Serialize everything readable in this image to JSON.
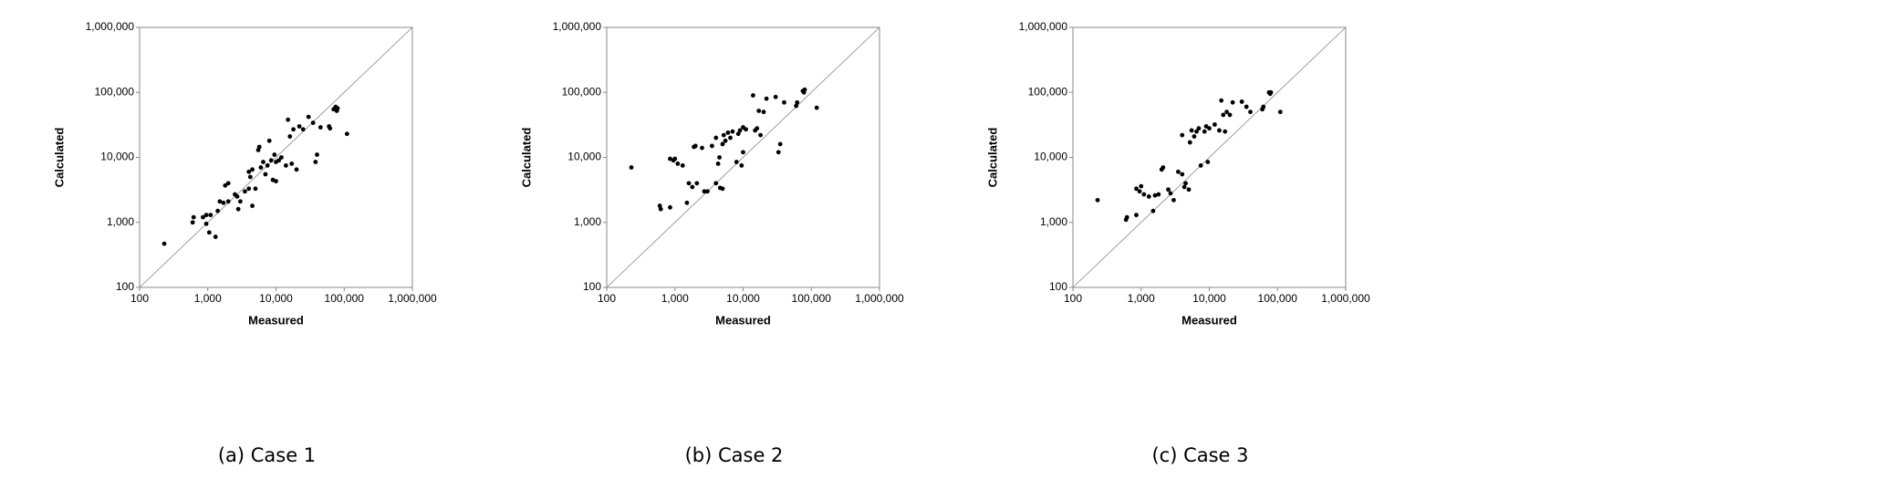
{
  "chart_data": [
    {
      "type": "scatter",
      "caption": "(a) Case 1",
      "xlabel": "Measured",
      "ylabel": "Calculated",
      "color": "#000000",
      "log_x": true,
      "log_y": true,
      "xlim": [
        100,
        1000000
      ],
      "ylim": [
        100,
        1000000
      ],
      "xticks": [
        100,
        {
          "value": 1000,
          "label": "1,000"
        },
        {
          "value": 10000,
          "label": "10,000"
        },
        {
          "value": 100000,
          "label": "100,000"
        },
        {
          "value": 1000000,
          "label": "1,000,000"
        }
      ],
      "yticks": [
        100,
        {
          "value": 1000,
          "label": "1,000"
        },
        {
          "value": 10000,
          "label": "10,000"
        },
        {
          "value": 100000,
          "label": "100,000"
        },
        {
          "value": 1000000,
          "label": "1,000,000"
        }
      ],
      "x": [
        230,
        600,
        620,
        850,
        950,
        950,
        1050,
        1100,
        1300,
        1400,
        1500,
        1700,
        1800,
        2000,
        2000,
        2500,
        2700,
        2800,
        3000,
        3500,
        4000,
        4000,
        4200,
        4500,
        4500,
        5000,
        5500,
        5700,
        6000,
        6500,
        7000,
        7500,
        8000,
        8500,
        9000,
        9500,
        10000,
        10000,
        11000,
        12000,
        14000,
        15000,
        16000,
        17000,
        18000,
        20000,
        22000,
        25000,
        30000,
        35000,
        38000,
        40000,
        45000,
        60000,
        62000,
        70000,
        75000,
        78000,
        80000,
        110000
      ],
      "values": [
        470,
        1000,
        1200,
        1200,
        1300,
        950,
        700,
        1300,
        600,
        1500,
        2100,
        2000,
        3700,
        4000,
        2100,
        2700,
        2500,
        1600,
        2100,
        3000,
        6000,
        3300,
        5000,
        6500,
        1800,
        3300,
        13000,
        14500,
        7000,
        8500,
        5500,
        7500,
        18000,
        9000,
        4500,
        11000,
        4300,
        8500,
        9000,
        10000,
        7500,
        38000,
        21000,
        8000,
        27000,
        6500,
        30000,
        27000,
        42000,
        34000,
        8500,
        11000,
        29000,
        30000,
        28000,
        55000,
        60000,
        52000,
        57000,
        23000
      ]
    },
    {
      "type": "scatter",
      "caption": "(b) Case 2",
      "xlabel": "Measured",
      "ylabel": "Calculated",
      "color": "#000000",
      "log_x": true,
      "log_y": true,
      "xlim": [
        100,
        1000000
      ],
      "ylim": [
        100,
        1000000
      ],
      "xticks": [
        100,
        {
          "value": 1000,
          "label": "1,000"
        },
        {
          "value": 10000,
          "label": "10,000"
        },
        {
          "value": 100000,
          "label": "100,000"
        },
        {
          "value": 1000000,
          "label": "1,000,000"
        }
      ],
      "yticks": [
        100,
        {
          "value": 1000,
          "label": "1,000"
        },
        {
          "value": 10000,
          "label": "10,000"
        },
        {
          "value": 100000,
          "label": "100,000"
        },
        {
          "value": 1000000,
          "label": "1,000,000"
        }
      ],
      "x": [
        230,
        600,
        620,
        850,
        850,
        950,
        1000,
        1100,
        1300,
        1500,
        1600,
        1800,
        1900,
        2000,
        2100,
        2500,
        2700,
        3000,
        3500,
        4000,
        4000,
        4300,
        4500,
        4600,
        5000,
        5000,
        5200,
        5500,
        6000,
        6500,
        7000,
        8000,
        8500,
        9000,
        9500,
        10000,
        10000,
        11000,
        14000,
        15000,
        16000,
        17000,
        18000,
        20000,
        22000,
        30000,
        33000,
        35000,
        40000,
        60000,
        62000,
        75000,
        80000,
        78000,
        120000
      ],
      "values": [
        7000,
        1800,
        1600,
        1700,
        9500,
        9000,
        9500,
        8000,
        7500,
        2000,
        4000,
        3500,
        14500,
        15000,
        4000,
        14000,
        3000,
        3000,
        15000,
        4000,
        20000,
        8000,
        10000,
        3400,
        3300,
        16000,
        22000,
        18000,
        24000,
        20000,
        25000,
        8500,
        23000,
        26000,
        7500,
        29000,
        12000,
        27000,
        90000,
        26000,
        28000,
        52000,
        22000,
        50000,
        80000,
        85000,
        12000,
        16000,
        70000,
        62000,
        70000,
        105000,
        110000,
        100000,
        58000
      ]
    },
    {
      "type": "scatter",
      "caption": "(c) Case 3",
      "xlabel": "Measured",
      "ylabel": "Calculated",
      "color": "#000000",
      "log_x": true,
      "log_y": true,
      "xlim": [
        100,
        1000000
      ],
      "ylim": [
        100,
        1000000
      ],
      "xticks": [
        100,
        {
          "value": 1000,
          "label": "1,000"
        },
        {
          "value": 10000,
          "label": "10,000"
        },
        {
          "value": 100000,
          "label": "100,000"
        },
        {
          "value": 1000000,
          "label": "1,000,000"
        }
      ],
      "yticks": [
        100,
        {
          "value": 1000,
          "label": "1,000"
        },
        {
          "value": 10000,
          "label": "10,000"
        },
        {
          "value": 100000,
          "label": "100,000"
        },
        {
          "value": 1000000,
          "label": "1,000,000"
        }
      ],
      "x": [
        230,
        600,
        620,
        850,
        850,
        950,
        1000,
        1100,
        1300,
        1500,
        1600,
        1800,
        2000,
        2100,
        2500,
        2700,
        3000,
        3500,
        4000,
        4000,
        4300,
        4500,
        5000,
        5200,
        5500,
        6000,
        6500,
        7000,
        7500,
        8500,
        9000,
        9500,
        10000,
        12000,
        14000,
        15000,
        16000,
        17000,
        18000,
        20000,
        22000,
        30000,
        35000,
        40000,
        60000,
        62000,
        75000,
        78000,
        80000,
        110000
      ],
      "values": [
        2200,
        1100,
        1200,
        1300,
        3300,
        3000,
        3600,
        2700,
        2500,
        1500,
        2600,
        2700,
        6500,
        7000,
        3200,
        2800,
        2200,
        6000,
        5500,
        22000,
        3500,
        4000,
        3200,
        17000,
        26000,
        21000,
        25000,
        28000,
        7500,
        25000,
        30000,
        8500,
        28000,
        32000,
        26000,
        75000,
        45000,
        25000,
        50000,
        45000,
        70000,
        72000,
        60000,
        50000,
        55000,
        60000,
        100000,
        95000,
        100000,
        50000
      ]
    }
  ]
}
